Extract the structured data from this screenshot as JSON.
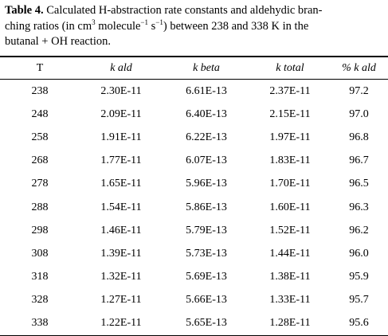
{
  "caption": {
    "label": "Table 4.",
    "line1": "Calculated H-abstraction rate constants and aldehydic bran-",
    "line2a": "ching ratios (in cm",
    "sup1": "3",
    "line2b": "molecule",
    "sup2": "−1",
    "line2c": "s",
    "sup3": "−1",
    "line2d": ") between 238 and 338 K in the",
    "line3": "butanal + OH reaction."
  },
  "table": {
    "headers": [
      "T",
      "k ald",
      "k beta",
      "k total",
      "% k ald"
    ],
    "rows": [
      [
        "238",
        "2.30E-11",
        "6.61E-13",
        "2.37E-11",
        "97.2"
      ],
      [
        "248",
        "2.09E-11",
        "6.40E-13",
        "2.15E-11",
        "97.0"
      ],
      [
        "258",
        "1.91E-11",
        "6.22E-13",
        "1.97E-11",
        "96.8"
      ],
      [
        "268",
        "1.77E-11",
        "6.07E-13",
        "1.83E-11",
        "96.7"
      ],
      [
        "278",
        "1.65E-11",
        "5.96E-13",
        "1.70E-11",
        "96.5"
      ],
      [
        "288",
        "1.54E-11",
        "5.86E-13",
        "1.60E-11",
        "96.3"
      ],
      [
        "298",
        "1.46E-11",
        "5.79E-13",
        "1.52E-11",
        "96.2"
      ],
      [
        "308",
        "1.39E-11",
        "5.73E-13",
        "1.44E-11",
        "96.0"
      ],
      [
        "318",
        "1.32E-11",
        "5.69E-13",
        "1.38E-11",
        "95.9"
      ],
      [
        "328",
        "1.27E-11",
        "5.66E-13",
        "1.33E-11",
        "95.7"
      ],
      [
        "338",
        "1.22E-11",
        "5.65E-13",
        "1.28E-11",
        "95.6"
      ]
    ]
  }
}
